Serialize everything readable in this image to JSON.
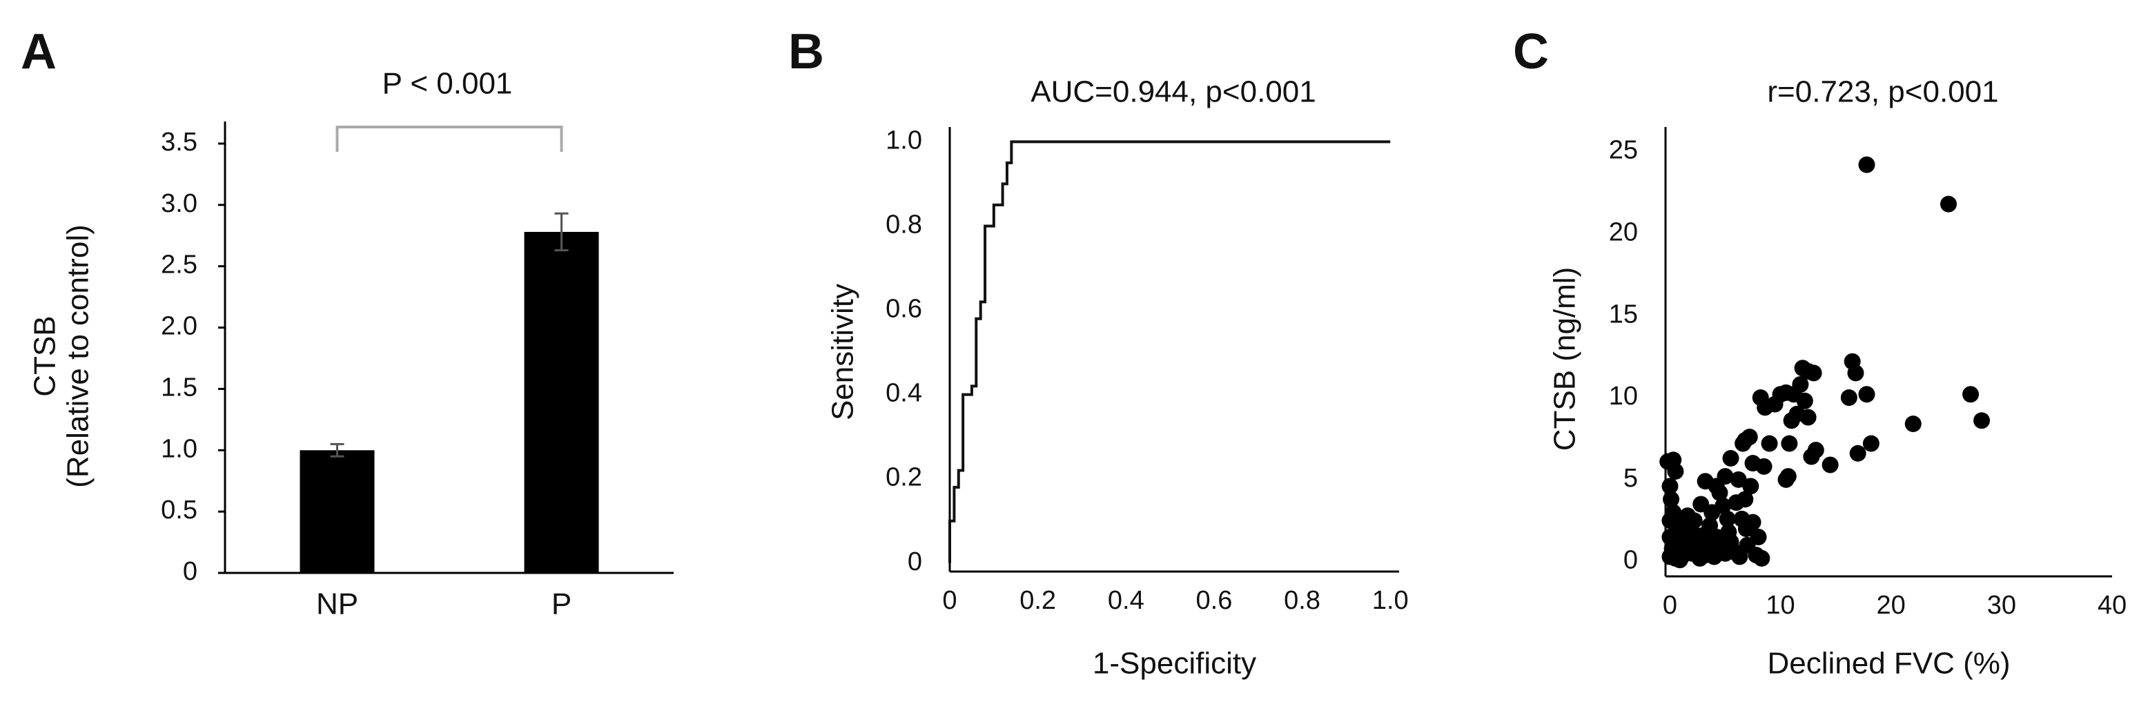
{
  "chart_data": [
    {
      "type": "bar",
      "panel_label": "A",
      "title": "P < 0.001",
      "ylabel": [
        "CTSB",
        "(Relative to control)"
      ],
      "categories": [
        "NP",
        "P"
      ],
      "values": [
        1.0,
        2.78
      ],
      "errors": [
        0.05,
        0.15
      ],
      "color": "#000000",
      "ylim": [
        0,
        3.68
      ],
      "yticks": [
        0,
        0.5,
        {
          "value": 1,
          "label": "1.0"
        },
        1.5,
        {
          "value": 2,
          "label": "2.0"
        },
        2.5,
        {
          "value": 3,
          "label": "3.0"
        },
        3.5
      ]
    },
    {
      "type": "line",
      "panel_label": "B",
      "title": "AUC=0.944, p<0.001",
      "xlabel": "1-Specificity",
      "ylabel": "Sensitivity",
      "x": [
        0,
        0,
        0.01,
        0.01,
        0.02,
        0.02,
        0.03,
        0.03,
        0.05,
        0.05,
        0.06,
        0.06,
        0.07,
        0.07,
        0.08,
        0.08,
        0.1,
        0.1,
        0.12,
        0.12,
        0.13,
        0.13,
        0.14,
        0.14,
        1.0
      ],
      "series": [
        {
          "color": "#111111",
          "values": [
            0,
            0.1,
            0.1,
            0.18,
            0.18,
            0.22,
            0.22,
            0.4,
            0.4,
            0.42,
            0.42,
            0.58,
            0.58,
            0.62,
            0.62,
            0.8,
            0.8,
            0.85,
            0.85,
            0.9,
            0.9,
            0.95,
            0.95,
            1.0,
            1.0
          ]
        }
      ],
      "xlim": [
        0,
        1.02
      ],
      "ylim": [
        -0.02,
        1.035
      ],
      "xticks": [
        0,
        0.2,
        0.4,
        0.6,
        0.8,
        {
          "value": 1,
          "label": "1.0"
        }
      ],
      "yticks": [
        0,
        0.2,
        0.4,
        0.6,
        0.8,
        {
          "value": 1,
          "label": "1.0"
        }
      ]
    },
    {
      "type": "scatter",
      "panel_label": "C",
      "title": "r=0.723, p<0.001",
      "xlabel": "Declined FVC (%)",
      "ylabel": "CTSB (ng/ml)",
      "color": "#000000",
      "x": [
        17.8,
        25.2,
        27.2,
        28.2,
        22,
        18.2,
        17.8,
        16.2,
        16.5,
        16.8,
        17,
        14.5,
        12,
        12.5,
        13,
        11.8,
        12.2,
        12.5,
        11.5,
        10,
        10.5,
        11.2,
        8.2,
        8.6,
        9.5,
        11,
        10.8,
        9,
        10.5,
        10.7,
        13.2,
        12.8,
        7.2,
        6.8,
        6.6,
        5.5,
        5,
        4.2,
        3.2,
        0.3,
        -0.2,
        0.5,
        0,
        0.1,
        7.5,
        8.5,
        6.2,
        6,
        6.5,
        7.5,
        8,
        5.5,
        5,
        4.2,
        3.6,
        3,
        2.5,
        2,
        1.5,
        1,
        0.5,
        0.2,
        0,
        0,
        0.3,
        0.8,
        1.2,
        2,
        3.2,
        4,
        4.5,
        5.8,
        6.3,
        7,
        7.8,
        8.3,
        1.6,
        2.2,
        4.8,
        5.2,
        3.8,
        2.8,
        6.8,
        0.6,
        1.4,
        0.9,
        0,
        2.7,
        3.5,
        5.3,
        6.9,
        7.3,
        4.5,
        1.8,
        0.4
      ],
      "values": [
        24.2,
        21.8,
        10.2,
        8.6,
        8.4,
        7.2,
        10.2,
        10,
        12.2,
        11.5,
        6.6,
        5.9,
        11.8,
        11.6,
        11.5,
        10.8,
        9.8,
        8.8,
        9,
        10.2,
        10.3,
        10.2,
        10,
        9.4,
        9.6,
        8.6,
        7.2,
        7.2,
        5,
        5.2,
        6.8,
        6.4,
        7.6,
        7.4,
        7.2,
        6.3,
        5.2,
        4.6,
        4.9,
        6.2,
        6.1,
        5.5,
        4.6,
        3.8,
        6,
        5.8,
        5,
        3.6,
        2.6,
        2.4,
        1.5,
        1.2,
        0.5,
        1.5,
        2.2,
        1.6,
        0.9,
        0.5,
        1.2,
        2,
        0.2,
        0.8,
        1.5,
        2.5,
        3,
        1.4,
        0.4,
        1.8,
        0.4,
        0.3,
        0.9,
        0.6,
        0.3,
        1,
        0.4,
        0.2,
        2.8,
        2.5,
        3.4,
        2.6,
        3,
        3.5,
        3.8,
        2.2,
        0.9,
        0.1,
        0.3,
        0.2,
        1.1,
        1.8,
        2,
        4.6,
        4.2,
        1.2,
        1.2
      ],
      "xlim": [
        -0.4,
        40
      ],
      "ylim": [
        -0.9,
        26.5
      ],
      "xticks": [
        0,
        10,
        20,
        30,
        40
      ],
      "yticks": [
        0,
        5,
        10,
        15,
        20,
        25
      ]
    }
  ]
}
